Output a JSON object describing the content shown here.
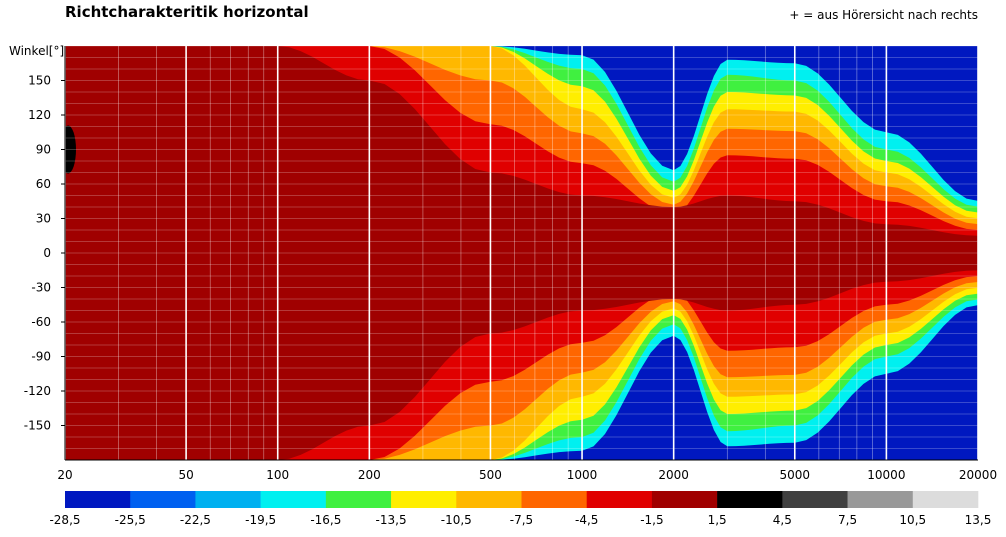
{
  "chart_data": {
    "type": "heatmap",
    "title": "Richtcharakteritik horizontal",
    "note": "+ = aus Hörersicht nach rechts",
    "ylabel": "Winkel[°]",
    "xlabel": "",
    "x_scale": "log",
    "xlim": [
      20,
      20000
    ],
    "ylim": [
      -180,
      180
    ],
    "x_ticks": [
      20,
      50,
      100,
      200,
      500,
      1000,
      2000,
      5000,
      10000,
      20000
    ],
    "y_ticks": [
      150,
      120,
      90,
      60,
      30,
      0,
      -30,
      -60,
      -90,
      -120,
      -150
    ],
    "colorbar": {
      "ticks": [
        "-28,5",
        "-25,5",
        "-22,5",
        "-19,5",
        "-16,5",
        "-13,5",
        "-10,5",
        "-7,5",
        "-4,5",
        "-1,5",
        "1,5",
        "4,5",
        "7,5",
        "10,5",
        "13,5"
      ],
      "colors": [
        "#0018c0",
        "#0060f0",
        "#00b0f0",
        "#00f0f0",
        "#40f040",
        "#ffee00",
        "#ffb800",
        "#ff6600",
        "#e00000",
        "#a00000",
        "#000000",
        "#404040",
        "#999999",
        "#dcdcdc"
      ]
    },
    "beamwidth_contours_deg": {
      "frequencies": [
        20,
        100,
        200,
        500,
        1000,
        2000,
        3000,
        5000,
        10000,
        20000
      ],
      "-1.5": [
        180,
        180,
        150,
        70,
        50,
        40,
        50,
        45,
        25,
        15
      ],
      "-4.5": [
        180,
        180,
        180,
        112,
        78,
        34,
        85,
        82,
        45,
        20
      ],
      "-7.5": [
        180,
        180,
        180,
        150,
        104,
        42,
        108,
        106,
        58,
        25
      ],
      "-10.5": [
        180,
        180,
        180,
        180,
        125,
        48,
        125,
        123,
        70,
        30
      ],
      "-13.5": [
        180,
        180,
        180,
        180,
        145,
        54,
        140,
        137,
        80,
        35
      ],
      "-16.5": [
        180,
        180,
        180,
        180,
        160,
        62,
        155,
        150,
        90,
        40
      ],
      "-19.5": [
        180,
        180,
        180,
        180,
        172,
        72,
        168,
        165,
        105,
        45
      ]
    }
  }
}
